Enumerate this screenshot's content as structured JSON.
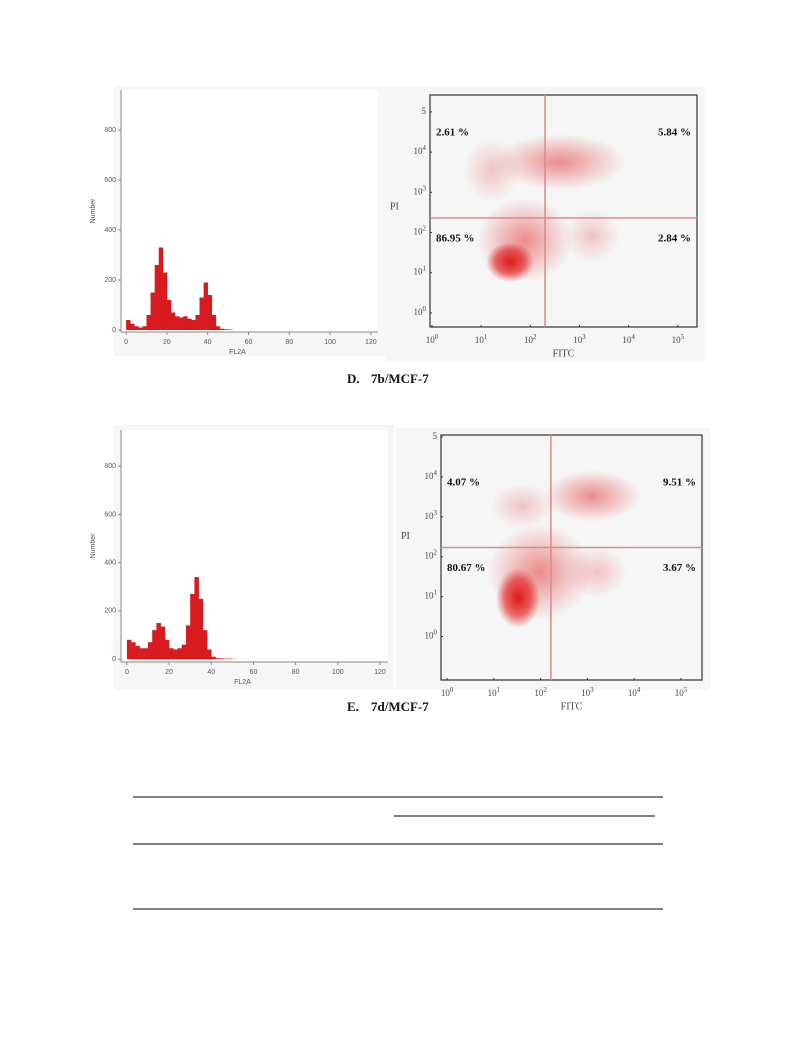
{
  "figures": [
    {
      "caption_letter": "D.",
      "caption": "7b/MCF-7",
      "histogram": {
        "type": "histogram",
        "xlabel": "FL2A",
        "ylabel": "Number",
        "color": "#d81b1e",
        "bins": [
          0,
          2,
          4,
          6,
          8,
          10,
          12,
          14,
          16,
          18,
          20,
          22,
          24,
          26,
          28,
          30,
          32,
          34,
          36,
          38,
          40,
          42,
          44,
          46,
          48,
          50,
          52
        ],
        "counts": [
          40,
          25,
          15,
          10,
          15,
          60,
          150,
          260,
          330,
          230,
          120,
          70,
          55,
          50,
          55,
          45,
          40,
          60,
          130,
          190,
          140,
          60,
          15,
          5,
          3,
          2
        ],
        "xlim": [
          -2.5,
          123.5
        ],
        "ylim": [
          -8,
          960
        ],
        "xticks": [
          0,
          20,
          40,
          60,
          80,
          100,
          120
        ],
        "yticks": [
          0,
          200,
          400,
          600,
          800
        ]
      },
      "dotplot": {
        "type": "scatter",
        "xlabel": "FITC",
        "ylabel": "PI",
        "color": "#d81b1e",
        "xlim": [
          -0.04,
          5.39
        ],
        "ylim": [
          -0.35,
          5.42
        ],
        "quadrant_x": 2.3,
        "quadrant_y": 2.36,
        "xticks": [
          {
            "value": 0,
            "label": "10",
            "sup": "0"
          },
          {
            "value": 1,
            "label": "10",
            "sup": "1"
          },
          {
            "value": 2,
            "label": "10",
            "sup": "2"
          },
          {
            "value": 3,
            "label": "10",
            "sup": "3"
          },
          {
            "value": 4,
            "label": "10",
            "sup": "4"
          },
          {
            "value": 5,
            "label": "10",
            "sup": "5"
          }
        ],
        "yticks": [
          {
            "value": 0,
            "label": "10",
            "sup": "0"
          },
          {
            "value": 1,
            "label": "10",
            "sup": "1"
          },
          {
            "value": 2,
            "label": "10",
            "sup": "2"
          },
          {
            "value": 3,
            "label": "10",
            "sup": "3"
          },
          {
            "value": 4,
            "label": "10",
            "sup": "4"
          },
          {
            "value": 5,
            "label": "5"
          }
        ],
        "quadrants": [
          "upper-left",
          "upper-right",
          "lower-left",
          "lower-right"
        ],
        "values": [
          2.61,
          5.84,
          86.95,
          2.84
        ],
        "value_labels": [
          "2.61 %",
          "5.84 %",
          "86.95 %",
          "2.84 %"
        ]
      }
    },
    {
      "caption_letter": "E.",
      "caption": "7d/MCF-7",
      "histogram": {
        "type": "histogram",
        "xlabel": "FL2A",
        "ylabel": "Number",
        "color": "#d81b1e",
        "bins": [
          0,
          2,
          4,
          6,
          8,
          10,
          12,
          14,
          16,
          18,
          20,
          22,
          24,
          26,
          28,
          30,
          32,
          34,
          36,
          38,
          40,
          42,
          44,
          46,
          48,
          50,
          52
        ],
        "counts": [
          80,
          70,
          55,
          45,
          45,
          70,
          120,
          150,
          135,
          80,
          45,
          40,
          45,
          60,
          140,
          270,
          340,
          250,
          120,
          40,
          10,
          4,
          3,
          2,
          2,
          1
        ],
        "xlim": [
          -2.8,
          123.8
        ],
        "ylim": [
          -12,
          950
        ],
        "xticks": [
          0,
          20,
          40,
          60,
          80,
          100,
          120
        ],
        "yticks": [
          0,
          200,
          400,
          600,
          800
        ]
      },
      "dotplot": {
        "type": "scatter",
        "xlabel": "FITC",
        "ylabel": "PI",
        "color": "#d81b1e",
        "xlim": [
          -0.13,
          5.45
        ],
        "ylim": [
          -1.09,
          5.05
        ],
        "quadrant_x": 2.22,
        "quadrant_y": 2.23,
        "xticks": [
          {
            "value": 0,
            "label": "10",
            "sup": "0"
          },
          {
            "value": 1,
            "label": "10",
            "sup": "1"
          },
          {
            "value": 2,
            "label": "10",
            "sup": "2"
          },
          {
            "value": 3,
            "label": "10",
            "sup": "3"
          },
          {
            "value": 4,
            "label": "10",
            "sup": "4"
          },
          {
            "value": 5,
            "label": "10",
            "sup": "5"
          }
        ],
        "yticks": [
          {
            "value": 0,
            "label": "10",
            "sup": "0"
          },
          {
            "value": 1,
            "label": "10",
            "sup": "1"
          },
          {
            "value": 2,
            "label": "10",
            "sup": "2"
          },
          {
            "value": 3,
            "label": "10",
            "sup": "3"
          },
          {
            "value": 4,
            "label": "10",
            "sup": "4"
          },
          {
            "value": 5,
            "label": "5"
          }
        ],
        "quadrants": [
          "upper-left",
          "upper-right",
          "lower-left",
          "lower-right"
        ],
        "values": [
          4.07,
          9.51,
          80.67,
          3.67
        ],
        "value_labels": [
          "4.07 %",
          "9.51 %",
          "80.67 %",
          "3.67 %"
        ]
      }
    }
  ]
}
